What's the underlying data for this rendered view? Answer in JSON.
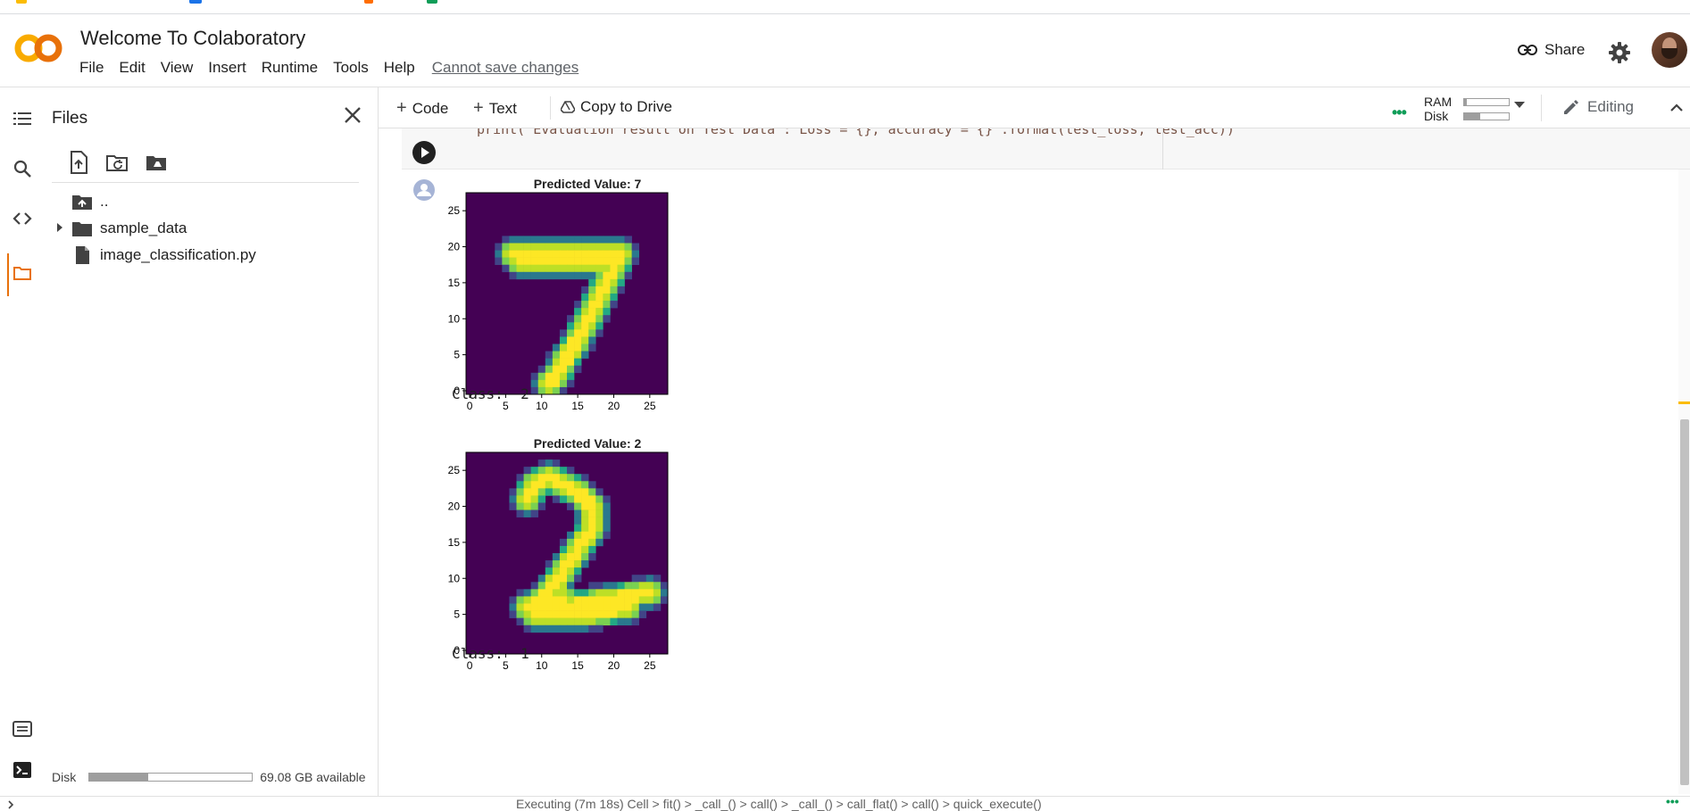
{
  "header": {
    "title": "Welcome To Colaboratory",
    "menu": [
      "File",
      "Edit",
      "View",
      "Insert",
      "Runtime",
      "Tools",
      "Help"
    ],
    "save_status": "Cannot save changes",
    "share_label": "Share"
  },
  "files": {
    "title": "Files",
    "tree": [
      {
        "name": "..",
        "type": "parent"
      },
      {
        "name": "sample_data",
        "type": "folder"
      },
      {
        "name": "image_classification.py",
        "type": "file"
      }
    ],
    "disk_label": "Disk",
    "disk_used_fraction": 0.36,
    "disk_available": "69.08 GB available"
  },
  "toolbar": {
    "code_label": "Code",
    "text_label": "Text",
    "copy_label": "Copy to Drive",
    "ram_label": "RAM",
    "disk_label": "Disk",
    "ram_fraction": 0.06,
    "disk_fraction": 0.35,
    "editing_label": "Editing"
  },
  "cell": {
    "code": "print('Evaluation result on Test Data : Loss = {}, accuracy = {}'.format(test_loss, test_acc))"
  },
  "outputs": [
    {
      "title": "Predicted Value: 7",
      "class_text": "Class:  2"
    },
    {
      "title": "Predicted Value: 2",
      "class_text": "Class:  1"
    }
  ],
  "chart_data": [
    {
      "type": "heatmap",
      "title": "Predicted Value: 7",
      "x_ticks": [
        0,
        5,
        10,
        15,
        20,
        25
      ],
      "y_ticks": [
        0,
        5,
        10,
        15,
        20,
        25
      ],
      "xlim": [
        -0.5,
        27.5
      ],
      "ylim": [
        27.5,
        -0.5
      ],
      "colormap": "viridis",
      "digit": "7"
    },
    {
      "type": "heatmap",
      "title": "Predicted Value: 2",
      "x_ticks": [
        0,
        5,
        10,
        15,
        20,
        25
      ],
      "y_ticks": [
        0,
        5,
        10,
        15,
        20,
        25
      ],
      "xlim": [
        -0.5,
        27.5
      ],
      "ylim": [
        27.5,
        -0.5
      ],
      "colormap": "viridis",
      "digit": "2"
    }
  ],
  "status": {
    "text": "Executing (7m 18s) Cell > fit() > _call_() > call() > _call_() > call_flat() > call() > quick_execute()"
  },
  "colors": {
    "accent": "#e8710a",
    "logo_orange": "#f9ab00",
    "viridis_low": "#440154",
    "viridis_high": "#fde725"
  },
  "icons": {
    "rail": [
      "toc-icon",
      "search-icon",
      "code-snippets-icon",
      "folder-icon",
      "terminal-list-icon",
      "terminal-icon"
    ],
    "file_tools": [
      "upload-icon",
      "refresh-folder-icon",
      "mount-drive-icon"
    ]
  }
}
